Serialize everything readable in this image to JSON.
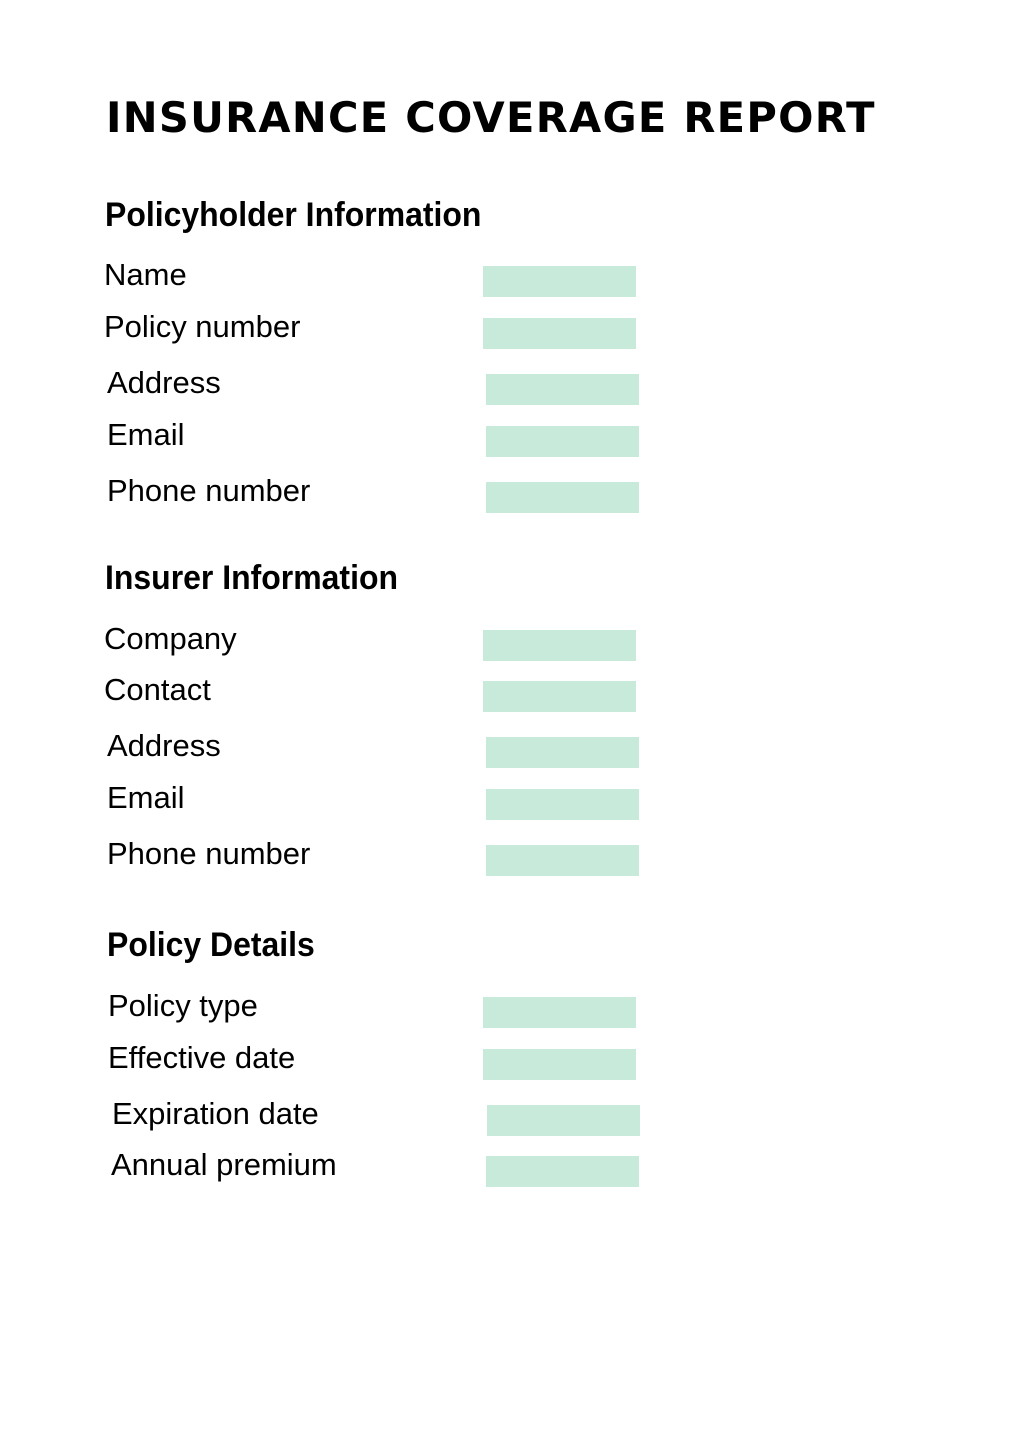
{
  "page": {
    "title": "INSURANCE COVERAGE REPORT",
    "background_color": "#ffffff",
    "text_color": "#000000",
    "accent_color": "#c7eadb"
  },
  "sections": [
    {
      "heading": "Policyholder Information",
      "fields": [
        {
          "label": "Name",
          "value": ""
        },
        {
          "label": "Policy number",
          "value": ""
        },
        {
          "label": "Address",
          "value": ""
        },
        {
          "label": "Email",
          "value": ""
        },
        {
          "label": "Phone number",
          "value": ""
        }
      ]
    },
    {
      "heading": "Insurer Information",
      "fields": [
        {
          "label": "Company",
          "value": ""
        },
        {
          "label": "Contact",
          "value": ""
        },
        {
          "label": "Address",
          "value": ""
        },
        {
          "label": "Email",
          "value": ""
        },
        {
          "label": "Phone number",
          "value": ""
        }
      ]
    },
    {
      "heading": "Policy Details",
      "fields": [
        {
          "label": "Policy type",
          "value": ""
        },
        {
          "label": "Effective date",
          "value": ""
        },
        {
          "label": "Expiration date",
          "value": ""
        },
        {
          "label": "Annual premium",
          "value": ""
        }
      ]
    }
  ]
}
